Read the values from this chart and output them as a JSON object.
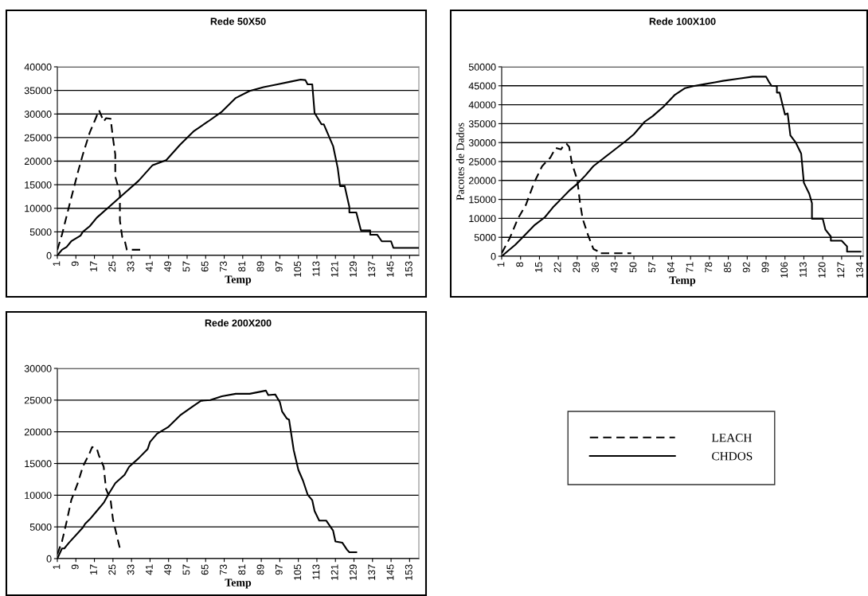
{
  "chart_data": [
    {
      "type": "line",
      "title": "Rede 50X50",
      "xlabel": "Temp",
      "xlim": [
        1,
        157
      ],
      "xticks": [
        1,
        9,
        17,
        25,
        33,
        41,
        49,
        57,
        65,
        73,
        81,
        89,
        97,
        105,
        113,
        121,
        129,
        137,
        145,
        153
      ],
      "ylim": [
        0,
        40000
      ],
      "yticks": [
        0,
        5000,
        10000,
        15000,
        20000,
        25000,
        30000,
        35000,
        40000
      ],
      "grid": "y",
      "legend": false,
      "series": [
        {
          "color": "#000000",
          "line_style": "dashed",
          "x": [
            1,
            3,
            6,
            10,
            12,
            15,
            17,
            19,
            21,
            22,
            24,
            25,
            26,
            26,
            28,
            28,
            29,
            30,
            31,
            37
          ],
          "values": [
            1200,
            4400,
            10300,
            17900,
            21400,
            26100,
            28400,
            30800,
            28400,
            29100,
            29000,
            24900,
            21400,
            16700,
            13200,
            7400,
            3900,
            3300,
            1200,
            1200
          ]
        },
        {
          "color": "#000000",
          "line_style": "solid",
          "x": [
            1,
            3,
            5,
            7,
            11,
            12,
            15,
            18,
            24,
            30,
            36,
            42,
            48,
            54,
            60,
            66,
            72,
            78,
            84,
            90,
            96,
            102,
            106,
            108,
            109,
            111,
            112,
            115,
            116,
            120,
            122,
            123,
            125,
            127,
            127,
            130,
            132,
            136,
            136,
            139,
            141,
            145,
            146,
            157
          ],
          "values": [
            0,
            1200,
            1800,
            3000,
            4200,
            5000,
            6200,
            8000,
            10600,
            13200,
            15800,
            19100,
            20200,
            23500,
            26400,
            28400,
            30500,
            33400,
            34900,
            35700,
            36300,
            36900,
            37300,
            37200,
            36300,
            36300,
            30200,
            27800,
            27800,
            23200,
            18500,
            14700,
            14700,
            10300,
            9100,
            9100,
            5300,
            5300,
            4400,
            4400,
            3000,
            3000,
            1600,
            1600
          ]
        }
      ]
    },
    {
      "type": "line",
      "title": "Rede 100X100",
      "xlabel": "Temp",
      "ylabel": "Pacotes de Dados",
      "xlim": [
        1,
        135
      ],
      "xticks": [
        1,
        8,
        15,
        22,
        29,
        36,
        43,
        50,
        57,
        64,
        71,
        78,
        85,
        92,
        99,
        106,
        113,
        120,
        127,
        134
      ],
      "ylim": [
        0,
        50000
      ],
      "yticks": [
        0,
        5000,
        10000,
        15000,
        20000,
        25000,
        30000,
        35000,
        40000,
        45000,
        50000
      ],
      "grid": "y",
      "legend": false,
      "series": [
        {
          "color": "#000000",
          "line_style": "dashed",
          "x": [
            1,
            4,
            7,
            10,
            13,
            16,
            19,
            21,
            23,
            24,
            25,
            26,
            27,
            29,
            30,
            31,
            33,
            35,
            37,
            37,
            49
          ],
          "values": [
            800,
            4800,
            9900,
            13600,
            19400,
            23800,
            26000,
            28600,
            28200,
            29300,
            29700,
            28900,
            24600,
            20200,
            14300,
            9900,
            5600,
            1900,
            1200,
            800,
            800
          ]
        },
        {
          "color": "#000000",
          "line_style": "solid",
          "x": [
            1,
            3,
            6,
            10,
            13,
            17,
            20,
            23,
            26,
            29,
            32,
            35,
            39,
            43,
            47,
            50,
            54,
            57,
            61,
            65,
            69,
            72,
            76,
            80,
            83,
            89,
            94,
            99,
            100,
            101,
            103,
            103,
            104,
            105,
            106,
            107,
            108,
            110,
            112,
            113,
            115,
            116,
            116,
            120,
            121,
            123,
            123,
            127,
            129,
            129,
            134
          ],
          "values": [
            0,
            1200,
            3000,
            5900,
            8100,
            10300,
            12900,
            15100,
            17300,
            19100,
            21300,
            23800,
            26000,
            28200,
            30400,
            32200,
            35500,
            37000,
            39500,
            42500,
            44400,
            44900,
            45400,
            45900,
            46300,
            46900,
            47400,
            47400,
            46100,
            45000,
            44900,
            43200,
            43200,
            40300,
            37400,
            37700,
            31900,
            30000,
            27100,
            19400,
            16500,
            14000,
            9900,
            9900,
            7000,
            5200,
            4100,
            4100,
            2600,
            1200,
            1200
          ]
        }
      ]
    },
    {
      "type": "line",
      "title": "Rede 200X200",
      "xlabel": "Temp",
      "xlim": [
        1,
        157
      ],
      "xticks": [
        1,
        9,
        17,
        25,
        33,
        41,
        49,
        57,
        65,
        73,
        81,
        89,
        97,
        105,
        113,
        121,
        129,
        137,
        145,
        153
      ],
      "ylim": [
        0,
        30000
      ],
      "yticks": [
        0,
        5000,
        10000,
        15000,
        20000,
        25000,
        30000
      ],
      "grid": "y",
      "legend": "right",
      "series": [
        {
          "name": "LEACH",
          "color": "#000000",
          "line_style": "dashed",
          "x": [
            1,
            3,
            5,
            7,
            10,
            12,
            15,
            16,
            18,
            19,
            21,
            22,
            24,
            25,
            27,
            28,
            29
          ],
          "values": [
            700,
            2700,
            5800,
            9200,
            12100,
            14500,
            16700,
            17600,
            17400,
            16200,
            14500,
            11000,
            9200,
            6200,
            3100,
            1600,
            1400
          ]
        },
        {
          "name": "CHDOS",
          "color": "#000000",
          "line_style": "solid",
          "x": [
            1,
            3,
            4,
            6,
            12,
            13,
            15,
            18,
            21,
            23,
            26,
            30,
            32,
            36,
            40,
            41,
            44,
            49,
            54,
            59,
            63,
            67,
            72,
            78,
            84,
            91,
            92,
            95,
            97,
            98,
            100,
            101,
            103,
            105,
            107,
            109,
            111,
            112,
            114,
            117,
            120,
            121,
            124,
            126,
            127,
            130
          ],
          "values": [
            0,
            1600,
            1600,
            2500,
            4900,
            5500,
            6200,
            7500,
            8800,
            10100,
            11900,
            13200,
            14500,
            15800,
            17300,
            18400,
            19700,
            20800,
            22600,
            23900,
            24900,
            25000,
            25600,
            26000,
            26000,
            26500,
            25800,
            25900,
            24700,
            23200,
            22100,
            21900,
            17100,
            14000,
            12300,
            10100,
            9200,
            7500,
            6000,
            6000,
            4400,
            2700,
            2500,
            1400,
            1000,
            1000
          ]
        }
      ]
    }
  ]
}
